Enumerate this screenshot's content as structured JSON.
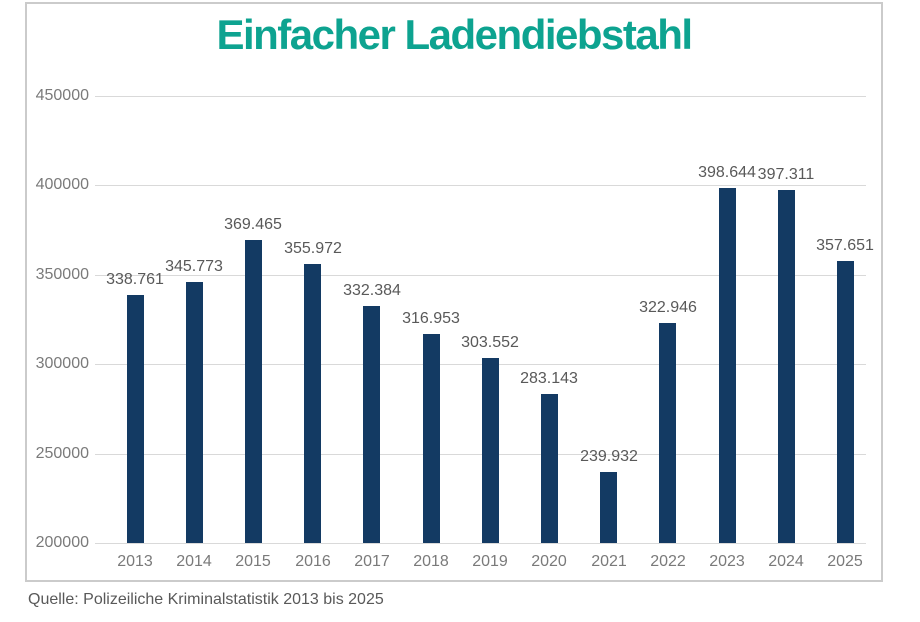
{
  "chart_data": {
    "type": "bar",
    "title": "Einfacher Ladendiebstahl",
    "categories": [
      "2013",
      "2014",
      "2015",
      "2016",
      "2017",
      "2018",
      "2019",
      "2020",
      "2021",
      "2022",
      "2023",
      "2024",
      "2025"
    ],
    "values": [
      338761,
      345773,
      369465,
      355972,
      332384,
      316953,
      303552,
      283143,
      239932,
      322946,
      398644,
      397311,
      357651
    ],
    "value_labels": [
      "338.761",
      "345.773",
      "369.465",
      "355.972",
      "332.384",
      "316.953",
      "303.552",
      "283.143",
      "239.932",
      "322.946",
      "398.644",
      "397.311",
      "357.651"
    ],
    "xlabel": "",
    "ylabel": "",
    "ylim": [
      200000,
      450000
    ],
    "y_ticks": [
      200000,
      250000,
      300000,
      350000,
      400000,
      450000
    ],
    "y_tick_labels": [
      "200000",
      "250000",
      "300000",
      "350000",
      "400000",
      "450000"
    ],
    "grid": true,
    "legend": "none",
    "colors": {
      "bar": "#133A63",
      "title": "#0DA390",
      "grid": "#D9D9D9",
      "tick": "#7A7A7A",
      "value_label": "#595959",
      "frame_border": "#CBCBCB",
      "caption": "#595959"
    }
  },
  "caption": {
    "text": "Quelle: Polizeiliche Kriminalstatistik 2013 bis 2025"
  }
}
